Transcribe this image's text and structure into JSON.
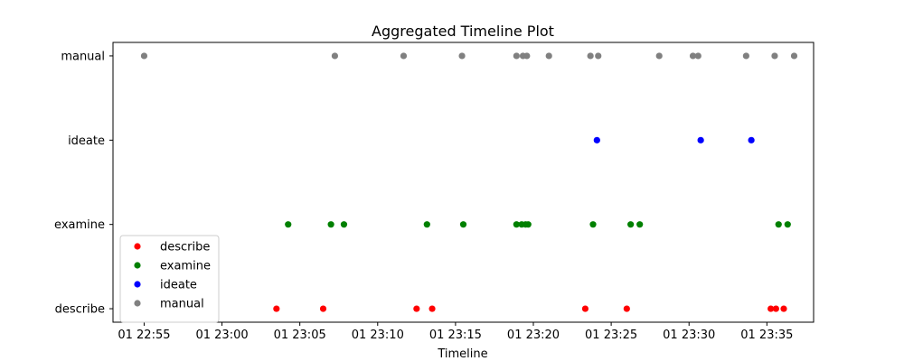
{
  "chart_data": {
    "type": "scatter",
    "title": "Aggregated Timeline Plot",
    "xlabel": "Timeline",
    "ylabel": "",
    "x_axis": {
      "kind": "time",
      "date": "2024-01-01",
      "range": [
        "22:53",
        "23:38"
      ],
      "ticks": [
        "22:55",
        "23:00",
        "23:05",
        "23:10",
        "23:15",
        "23:20",
        "23:25",
        "23:30",
        "23:35"
      ],
      "tick_labels": [
        "01 22:55",
        "01 23:00",
        "01 23:05",
        "01 23:10",
        "01 23:15",
        "01 23:20",
        "01 23:25",
        "01 23:30",
        "01 23:35"
      ]
    },
    "categories": [
      "describe",
      "examine",
      "ideate",
      "manual"
    ],
    "grid": false,
    "legend": "lower-left",
    "series": [
      {
        "name": "describe",
        "color": "#ff0000",
        "category": "describe",
        "x": [
          "23:03:30",
          "23:06:30",
          "23:12:30",
          "23:13:30",
          "23:23:20",
          "23:26:00",
          "23:35:15",
          "23:35:35",
          "23:36:05"
        ]
      },
      {
        "name": "examine",
        "color": "#008000",
        "category": "examine",
        "x": [
          "23:04:15",
          "23:07:00",
          "23:07:50",
          "23:13:10",
          "23:15:30",
          "23:18:55",
          "23:19:15",
          "23:19:30",
          "23:19:40",
          "23:23:50",
          "23:26:15",
          "23:26:50",
          "23:35:45",
          "23:36:20"
        ]
      },
      {
        "name": "ideate",
        "color": "#0000ff",
        "category": "ideate",
        "x": [
          "23:24:05",
          "23:30:45",
          "23:34:00"
        ]
      },
      {
        "name": "manual",
        "color": "#808080",
        "category": "manual",
        "x": [
          "22:55:00",
          "23:07:15",
          "23:11:40",
          "23:15:25",
          "23:18:55",
          "23:19:20",
          "23:19:35",
          "23:21:00",
          "23:23:40",
          "23:24:10",
          "23:28:05",
          "23:30:15",
          "23:30:35",
          "23:33:40",
          "23:35:30",
          "23:36:45"
        ]
      }
    ]
  }
}
